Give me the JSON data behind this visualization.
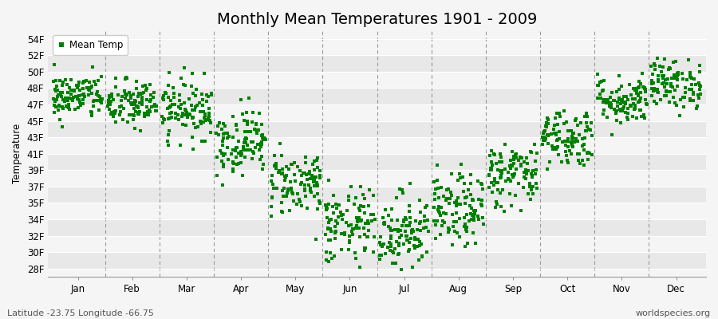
{
  "title": "Monthly Mean Temperatures 1901 - 2009",
  "ylabel": "Temperature",
  "xlabel_labels": [
    "Jan",
    "Feb",
    "Mar",
    "Apr",
    "May",
    "Jun",
    "Jul",
    "Aug",
    "Sep",
    "Oct",
    "Nov",
    "Dec"
  ],
  "vline_positions": [
    1.0,
    2.0,
    3.0,
    4.0,
    5.0,
    6.0,
    7.0,
    8.0,
    9.0,
    10.0,
    11.0
  ],
  "ytick_labels": [
    "28F",
    "30F",
    "32F",
    "34F",
    "35F",
    "37F",
    "39F",
    "41F",
    "43F",
    "45F",
    "47F",
    "48F",
    "50F",
    "52F",
    "54F"
  ],
  "ytick_indices": [
    0,
    1,
    2,
    3,
    4,
    5,
    6,
    7,
    8,
    9,
    10,
    11,
    12,
    13,
    14
  ],
  "ylim": [
    -0.5,
    14.5
  ],
  "xlim": [
    -0.05,
    12.05
  ],
  "dot_color": "#008000",
  "dot_size": 5,
  "background_color": "#f5f5f5",
  "stripe_colors": [
    "#e8e8e8",
    "#f5f5f5"
  ],
  "legend_label": "Mean Temp",
  "footer_left": "Latitude -23.75 Longitude -66.75",
  "footer_right": "worldspecies.org",
  "title_fontsize": 14,
  "axis_fontsize": 8.5,
  "footer_fontsize": 8,
  "monthly_means_idx": [
    10.5,
    10.0,
    9.75,
    7.75,
    5.25,
    2.5,
    2.25,
    3.5,
    5.75,
    8.0,
    10.25,
    11.25
  ],
  "monthly_stds_idx": [
    0.7,
    0.75,
    0.9,
    1.0,
    1.0,
    1.2,
    1.2,
    1.1,
    1.0,
    0.9,
    0.75,
    0.75
  ],
  "n_years": 109,
  "seed": 42
}
